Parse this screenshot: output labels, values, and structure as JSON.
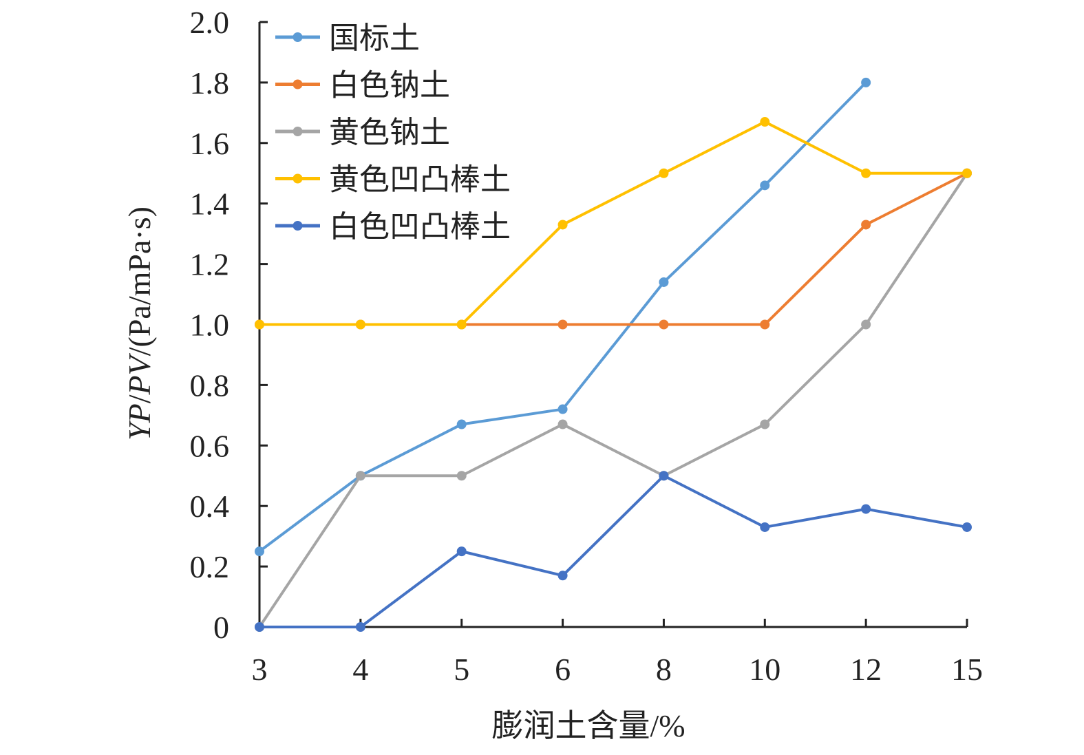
{
  "chart_data": {
    "type": "line",
    "title": "",
    "xlabel": "膨润土含量/%",
    "ylabel_parts": [
      "YP",
      "/",
      "PV",
      "/(Pa/mPa·s)"
    ],
    "categories": [
      "3",
      "4",
      "5",
      "6",
      "8",
      "10",
      "12",
      "15"
    ],
    "ylim": [
      0,
      2.0
    ],
    "yticks": [
      "0",
      "0.2",
      "0.4",
      "0.6",
      "0.8",
      "1.0",
      "1.2",
      "1.4",
      "1.6",
      "1.8",
      "2.0"
    ],
    "grid": false,
    "legend_position": "top-left",
    "series": [
      {
        "name": "国标土",
        "color": "#5b9bd5",
        "values": [
          0.25,
          0.5,
          0.67,
          0.72,
          1.14,
          1.46,
          1.8,
          null
        ]
      },
      {
        "name": "白色钠土",
        "color": "#ed7d31",
        "values": [
          1.0,
          1.0,
          1.0,
          1.0,
          1.0,
          1.0,
          1.33,
          1.5
        ]
      },
      {
        "name": "黄色钠土",
        "color": "#a5a5a5",
        "values": [
          0,
          0.5,
          0.5,
          0.67,
          0.5,
          0.67,
          1.0,
          1.5
        ]
      },
      {
        "name": "黄色凹凸棒土",
        "color": "#ffc000",
        "values": [
          1.0,
          1.0,
          1.0,
          1.33,
          1.5,
          1.67,
          1.5,
          1.5
        ]
      },
      {
        "name": "白色凹凸棒土",
        "color": "#4472c4",
        "values": [
          0,
          0,
          0.25,
          0.17,
          0.5,
          0.33,
          0.39,
          0.33
        ]
      }
    ]
  }
}
